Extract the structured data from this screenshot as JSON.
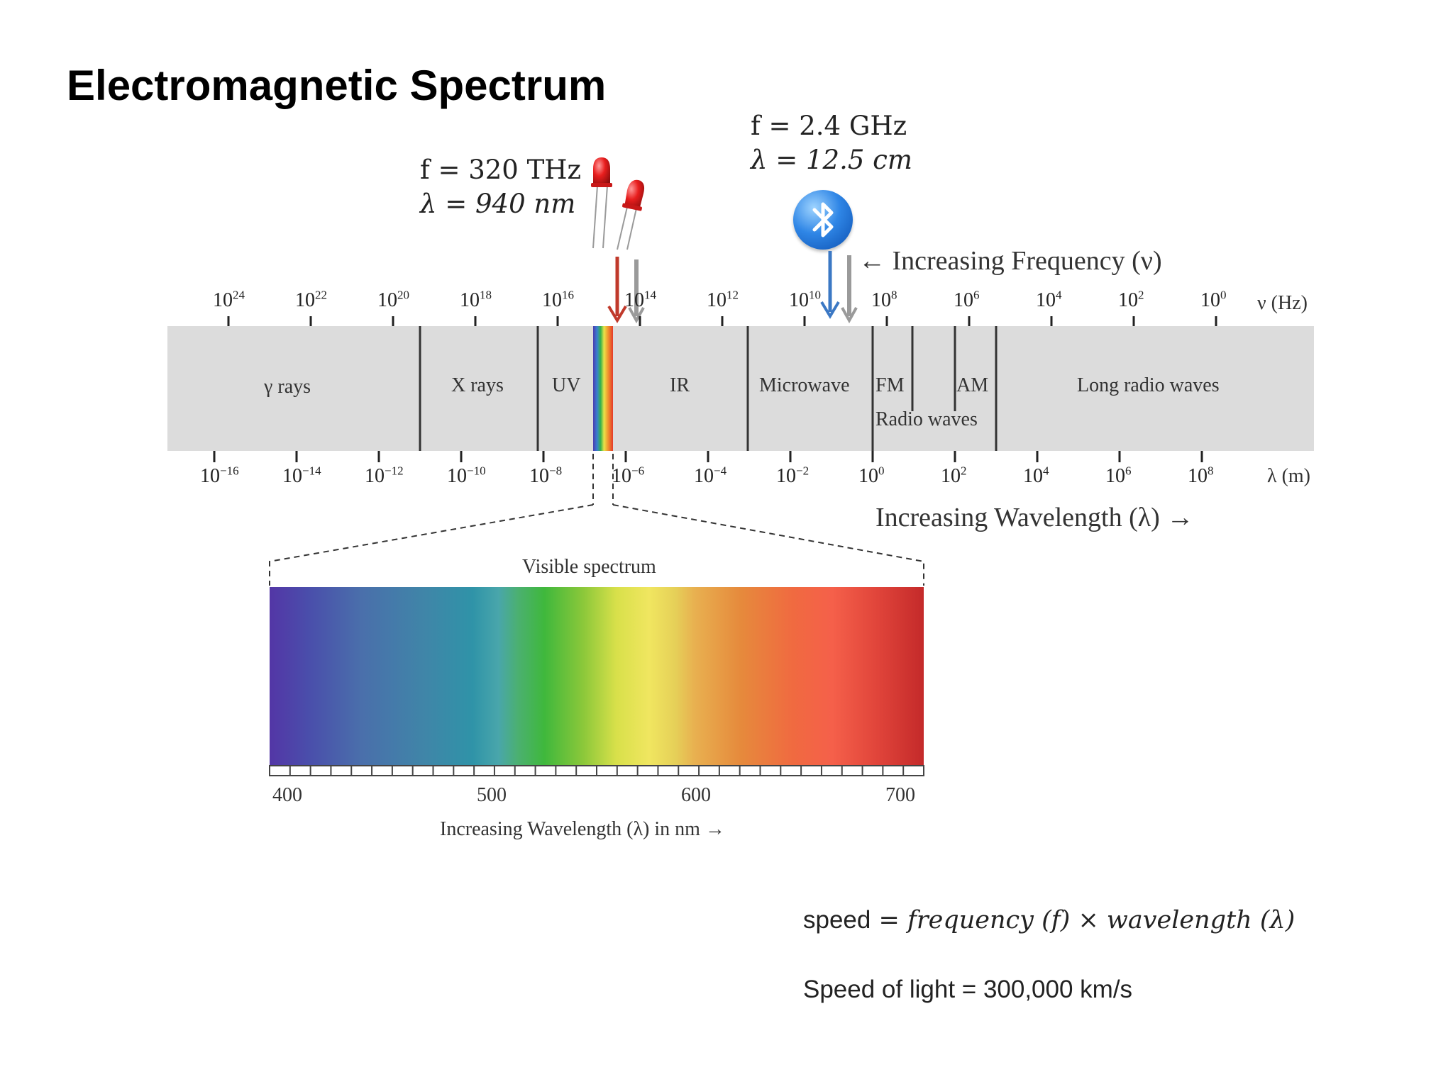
{
  "title": "Electromagnetic Spectrum",
  "ir_led": {
    "freq_prefix": "f = ",
    "freq_value": "320 THz",
    "wavelength_prefix": "λ = ",
    "wavelength_value": "940 nm",
    "icon": "led-icon"
  },
  "bluetooth": {
    "freq_prefix": "f = ",
    "freq_value": "2.4 GHz",
    "wavelength_prefix": "λ = ",
    "wavelength_value": "12.5 cm",
    "icon": "bluetooth-icon"
  },
  "frequency_axis": {
    "base": "10",
    "exponents": [
      "24",
      "22",
      "20",
      "18",
      "16",
      "14",
      "12",
      "10",
      "8",
      "6",
      "4",
      "2",
      "0"
    ],
    "unit": "ν (Hz)",
    "direction_label": "← Increasing Frequency (ν)"
  },
  "wavelength_axis": {
    "base": "10",
    "exponents": [
      "−16",
      "−14",
      "−12",
      "−10",
      "−8",
      "−6",
      "−4",
      "−2",
      "0",
      "2",
      "4",
      "6",
      "8"
    ],
    "unit": "λ (m)",
    "direction_label": "Increasing Wavelength (λ) →"
  },
  "bands": {
    "gamma": "γ rays",
    "xray": "X rays",
    "uv": "UV",
    "ir": "IR",
    "microwave": "Microwave",
    "fm": "FM",
    "am": "AM",
    "radio_waves": "Radio waves",
    "long_radio": "Long radio waves"
  },
  "visible_spectrum": {
    "title": "Visible spectrum",
    "nm_labels": [
      "400",
      "500",
      "600",
      "700"
    ],
    "axis_label": "Increasing Wavelength (λ) in nm →"
  },
  "formula": {
    "speed": "speed",
    "equals": " = ",
    "frequency": "frequency",
    "f": "(f)",
    "times": " × ",
    "wavelength": "wavelength",
    "lambda": "(λ)"
  },
  "speed_of_light": "Speed of light = 300,000 km/s",
  "colors": {
    "band_fill": "#dcdcdc",
    "ir_arrow": "#c0392b",
    "bt_arrow": "#3b78c4",
    "gray_arrow": "#9a9a9a"
  }
}
